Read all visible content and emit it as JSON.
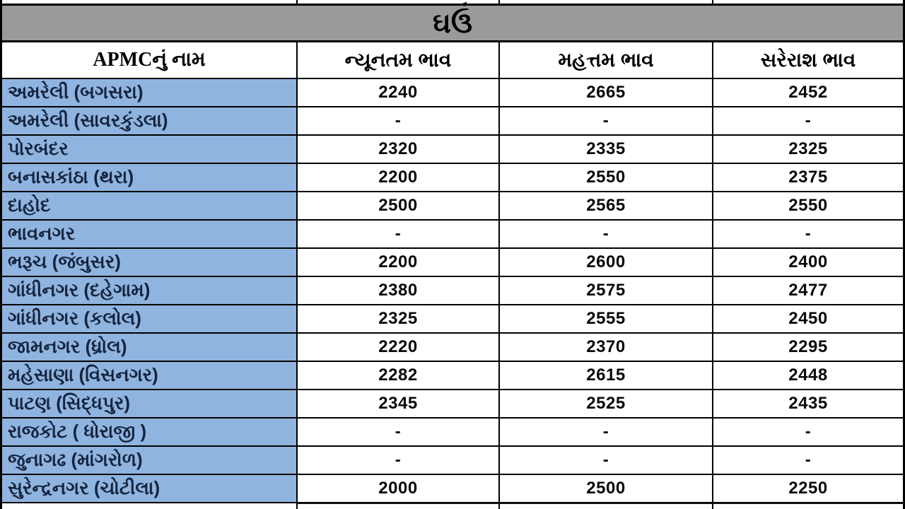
{
  "page_title": "ઘઉં",
  "colors": {
    "title_band": "#9A9A9A",
    "name_cell": "#8FB4DF",
    "grid_border": "#000000",
    "name_text": "#16233D",
    "value_text": "#0A0A0A"
  },
  "chart_data": {
    "type": "table",
    "title": "ઘઉં",
    "columns": [
      "APMCનું નામ",
      "ન્યૂનતમ ભાવ",
      "મહત્તમ ભાવ",
      "સરેરાશ ભાવ"
    ],
    "rows": [
      [
        "અમરેલી (બગસરા)",
        "2240",
        "2665",
        "2452"
      ],
      [
        "અમરેલી (સાવરકુંડલા)",
        "-",
        "-",
        "-"
      ],
      [
        "પોરબંદર",
        "2320",
        "2335",
        "2325"
      ],
      [
        "બનાસકાંઠા (થરા)",
        "2200",
        "2550",
        "2375"
      ],
      [
        "દાહોદ",
        "2500",
        "2565",
        "2550"
      ],
      [
        "ભાવનગર",
        "-",
        "-",
        "-"
      ],
      [
        "ભરૂચ (જંબુસર)",
        "2200",
        "2600",
        "2400"
      ],
      [
        "ગાંધીનગર (દહેગામ)",
        "2380",
        "2575",
        "2477"
      ],
      [
        "ગાંધીનગર (કલોલ)",
        "2325",
        "2555",
        "2450"
      ],
      [
        "જામનગર (ધ્રોલ)",
        "2220",
        "2370",
        "2295"
      ],
      [
        "મહેસાણા (વિસનગર)",
        "2282",
        "2615",
        "2448"
      ],
      [
        "પાટણ (સિદ્ધપુર)",
        "2345",
        "2525",
        "2435"
      ],
      [
        "રાજકોટ ( ધોરાજી )",
        "-",
        "-",
        "-"
      ],
      [
        "જુનાગઢ (માંગરોળ)",
        "-",
        "-",
        "-"
      ],
      [
        "સુરેન્દ્રનગર (ચોટીલા)",
        "2000",
        "2500",
        "2250"
      ]
    ],
    "layout_hints": {
      "name_column_fill": "light-blue",
      "title_band_fill": "gray",
      "grid": "on",
      "missing_value_marker": "-"
    }
  }
}
